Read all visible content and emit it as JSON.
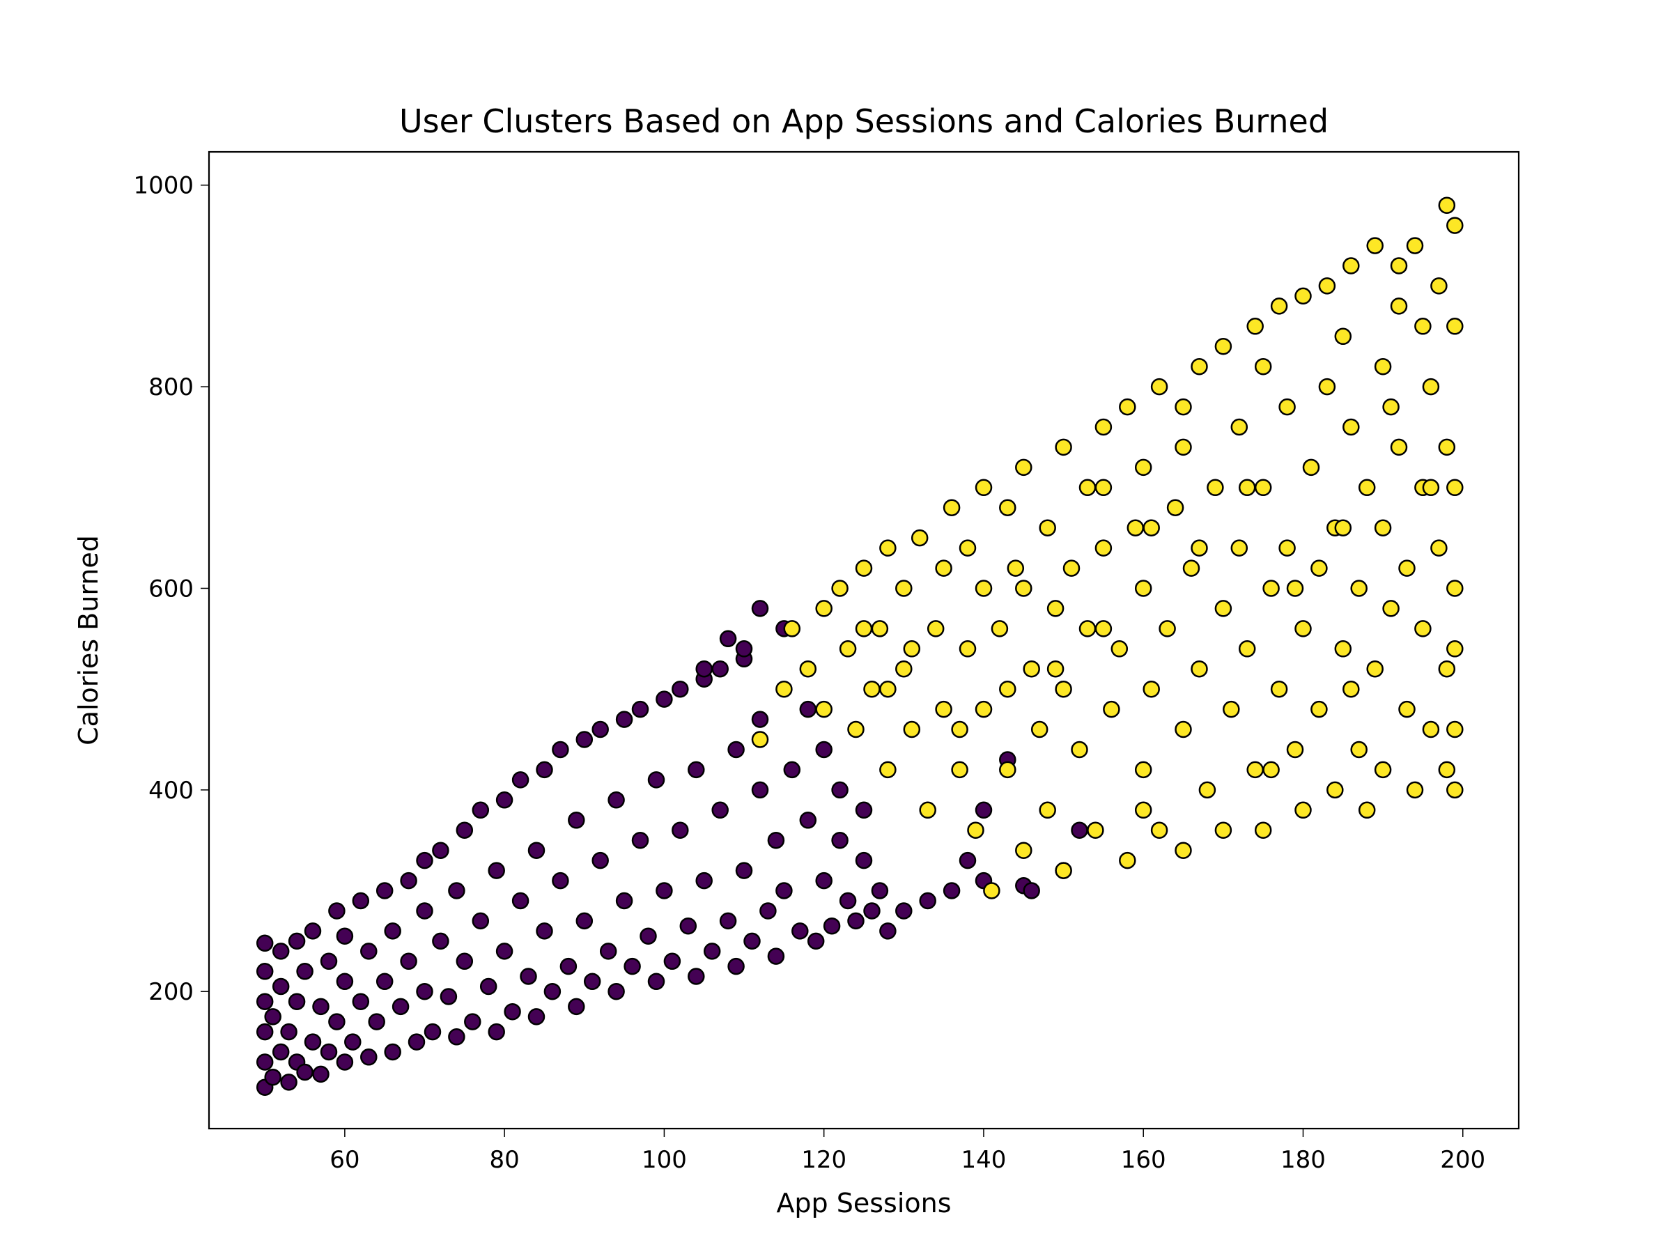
{
  "chart_data": {
    "type": "scatter",
    "title": "User Clusters Based on App Sessions and Calories Burned",
    "xlabel": "App Sessions",
    "ylabel": "Calories Burned",
    "xlim": [
      43,
      207
    ],
    "ylim": [
      64,
      1033
    ],
    "xticks": [
      60,
      80,
      100,
      120,
      140,
      160,
      180,
      200
    ],
    "yticks": [
      200,
      400,
      600,
      800,
      1000
    ],
    "grid": false,
    "legend": "none",
    "marker_edge_color": "#000000",
    "series": [
      {
        "color": "#440154",
        "points": [
          [
            50,
            105
          ],
          [
            50,
            130
          ],
          [
            50,
            160
          ],
          [
            50,
            190
          ],
          [
            50,
            220
          ],
          [
            50,
            248
          ],
          [
            51,
            115
          ],
          [
            51,
            175
          ],
          [
            52,
            140
          ],
          [
            52,
            205
          ],
          [
            52,
            240
          ],
          [
            53,
            110
          ],
          [
            53,
            160
          ],
          [
            54,
            130
          ],
          [
            54,
            190
          ],
          [
            54,
            250
          ],
          [
            55,
            120
          ],
          [
            55,
            220
          ],
          [
            56,
            150
          ],
          [
            56,
            260
          ],
          [
            57,
            118
          ],
          [
            57,
            185
          ],
          [
            58,
            140
          ],
          [
            58,
            230
          ],
          [
            59,
            170
          ],
          [
            59,
            280
          ],
          [
            60,
            130
          ],
          [
            60,
            210
          ],
          [
            60,
            255
          ],
          [
            61,
            150
          ],
          [
            62,
            190
          ],
          [
            62,
            290
          ],
          [
            63,
            135
          ],
          [
            63,
            240
          ],
          [
            64,
            170
          ],
          [
            65,
            300
          ],
          [
            65,
            210
          ],
          [
            66,
            140
          ],
          [
            66,
            260
          ],
          [
            67,
            185
          ],
          [
            68,
            310
          ],
          [
            68,
            230
          ],
          [
            69,
            150
          ],
          [
            70,
            200
          ],
          [
            70,
            280
          ],
          [
            70,
            330
          ],
          [
            71,
            160
          ],
          [
            72,
            250
          ],
          [
            72,
            340
          ],
          [
            73,
            195
          ],
          [
            74,
            155
          ],
          [
            74,
            300
          ],
          [
            75,
            230
          ],
          [
            75,
            360
          ],
          [
            76,
            170
          ],
          [
            77,
            270
          ],
          [
            77,
            380
          ],
          [
            78,
            205
          ],
          [
            79,
            320
          ],
          [
            79,
            160
          ],
          [
            80,
            240
          ],
          [
            80,
            390
          ],
          [
            81,
            180
          ],
          [
            82,
            290
          ],
          [
            82,
            410
          ],
          [
            83,
            215
          ],
          [
            84,
            340
          ],
          [
            84,
            175
          ],
          [
            85,
            260
          ],
          [
            85,
            420
          ],
          [
            86,
            200
          ],
          [
            87,
            310
          ],
          [
            87,
            440
          ],
          [
            88,
            225
          ],
          [
            89,
            370
          ],
          [
            89,
            185
          ],
          [
            90,
            270
          ],
          [
            90,
            450
          ],
          [
            91,
            210
          ],
          [
            92,
            330
          ],
          [
            92,
            460
          ],
          [
            93,
            240
          ],
          [
            94,
            390
          ],
          [
            94,
            200
          ],
          [
            95,
            290
          ],
          [
            95,
            470
          ],
          [
            96,
            225
          ],
          [
            97,
            350
          ],
          [
            97,
            480
          ],
          [
            98,
            255
          ],
          [
            99,
            410
          ],
          [
            99,
            210
          ],
          [
            100,
            300
          ],
          [
            100,
            490
          ],
          [
            101,
            230
          ],
          [
            102,
            360
          ],
          [
            102,
            500
          ],
          [
            103,
            265
          ],
          [
            104,
            420
          ],
          [
            104,
            215
          ],
          [
            105,
            310
          ],
          [
            105,
            510
          ],
          [
            106,
            240
          ],
          [
            107,
            380
          ],
          [
            107,
            520
          ],
          [
            108,
            270
          ],
          [
            109,
            440
          ],
          [
            109,
            225
          ],
          [
            110,
            320
          ],
          [
            110,
            530
          ],
          [
            111,
            250
          ],
          [
            112,
            400
          ],
          [
            112,
            470
          ],
          [
            113,
            280
          ],
          [
            114,
            350
          ],
          [
            114,
            235
          ],
          [
            115,
            300
          ],
          [
            116,
            420
          ],
          [
            117,
            260
          ],
          [
            118,
            370
          ],
          [
            119,
            250
          ],
          [
            120,
            310
          ],
          [
            121,
            265
          ],
          [
            122,
            350
          ],
          [
            123,
            290
          ],
          [
            124,
            270
          ],
          [
            125,
            330
          ],
          [
            126,
            280
          ],
          [
            127,
            300
          ],
          [
            128,
            260
          ],
          [
            130,
            280
          ],
          [
            133,
            290
          ],
          [
            136,
            300
          ],
          [
            140,
            310
          ],
          [
            145,
            305
          ],
          [
            150,
            320
          ],
          [
            118,
            480
          ],
          [
            120,
            440
          ],
          [
            122,
            400
          ],
          [
            125,
            380
          ],
          [
            110,
            540
          ],
          [
            108,
            550
          ],
          [
            105,
            520
          ],
          [
            115,
            560
          ],
          [
            112,
            580
          ],
          [
            140,
            380
          ],
          [
            143,
            430
          ],
          [
            138,
            330
          ],
          [
            146,
            300
          ],
          [
            152,
            360
          ]
        ]
      },
      {
        "color": "#fde725",
        "points": [
          [
            112,
            450
          ],
          [
            115,
            500
          ],
          [
            116,
            560
          ],
          [
            118,
            520
          ],
          [
            120,
            580
          ],
          [
            120,
            480
          ],
          [
            122,
            600
          ],
          [
            123,
            540
          ],
          [
            124,
            460
          ],
          [
            125,
            620
          ],
          [
            126,
            500
          ],
          [
            127,
            560
          ],
          [
            128,
            640
          ],
          [
            128,
            420
          ],
          [
            130,
            600
          ],
          [
            130,
            520
          ],
          [
            131,
            460
          ],
          [
            132,
            650
          ],
          [
            133,
            380
          ],
          [
            134,
            560
          ],
          [
            135,
            620
          ],
          [
            135,
            480
          ],
          [
            136,
            680
          ],
          [
            137,
            420
          ],
          [
            138,
            540
          ],
          [
            138,
            640
          ],
          [
            139,
            360
          ],
          [
            140,
            700
          ],
          [
            140,
            600
          ],
          [
            140,
            480
          ],
          [
            141,
            300
          ],
          [
            142,
            560
          ],
          [
            143,
            680
          ],
          [
            143,
            420
          ],
          [
            144,
            620
          ],
          [
            145,
            340
          ],
          [
            145,
            720
          ],
          [
            146,
            520
          ],
          [
            147,
            460
          ],
          [
            148,
            660
          ],
          [
            148,
            380
          ],
          [
            149,
            580
          ],
          [
            150,
            740
          ],
          [
            150,
            320
          ],
          [
            150,
            500
          ],
          [
            151,
            620
          ],
          [
            152,
            440
          ],
          [
            153,
            700
          ],
          [
            153,
            560
          ],
          [
            154,
            360
          ],
          [
            155,
            760
          ],
          [
            155,
            640
          ],
          [
            156,
            480
          ],
          [
            157,
            540
          ],
          [
            158,
            780
          ],
          [
            158,
            330
          ],
          [
            159,
            660
          ],
          [
            160,
            420
          ],
          [
            160,
            600
          ],
          [
            160,
            720
          ],
          [
            161,
            500
          ],
          [
            162,
            800
          ],
          [
            162,
            360
          ],
          [
            163,
            560
          ],
          [
            164,
            680
          ],
          [
            165,
            340
          ],
          [
            165,
            740
          ],
          [
            165,
            460
          ],
          [
            166,
            620
          ],
          [
            167,
            820
          ],
          [
            167,
            520
          ],
          [
            168,
            400
          ],
          [
            169,
            700
          ],
          [
            170,
            580
          ],
          [
            170,
            840
          ],
          [
            170,
            360
          ],
          [
            171,
            480
          ],
          [
            172,
            640
          ],
          [
            172,
            760
          ],
          [
            173,
            540
          ],
          [
            174,
            860
          ],
          [
            174,
            420
          ],
          [
            175,
            700
          ],
          [
            175,
            360
          ],
          [
            176,
            600
          ],
          [
            177,
            880
          ],
          [
            177,
            500
          ],
          [
            178,
            780
          ],
          [
            178,
            640
          ],
          [
            179,
            440
          ],
          [
            180,
            890
          ],
          [
            180,
            560
          ],
          [
            180,
            380
          ],
          [
            181,
            720
          ],
          [
            182,
            620
          ],
          [
            182,
            480
          ],
          [
            183,
            900
          ],
          [
            183,
            800
          ],
          [
            184,
            400
          ],
          [
            184,
            660
          ],
          [
            185,
            540
          ],
          [
            186,
            920
          ],
          [
            186,
            760
          ],
          [
            187,
            440
          ],
          [
            187,
            600
          ],
          [
            188,
            700
          ],
          [
            188,
            380
          ],
          [
            189,
            940
          ],
          [
            189,
            520
          ],
          [
            190,
            820
          ],
          [
            190,
            660
          ],
          [
            190,
            420
          ],
          [
            191,
            580
          ],
          [
            192,
            880
          ],
          [
            192,
            740
          ],
          [
            193,
            480
          ],
          [
            193,
            620
          ],
          [
            194,
            940
          ],
          [
            194,
            400
          ],
          [
            195,
            700
          ],
          [
            195,
            560
          ],
          [
            196,
            800
          ],
          [
            196,
            460
          ],
          [
            197,
            900
          ],
          [
            197,
            640
          ],
          [
            198,
            980
          ],
          [
            198,
            520
          ],
          [
            198,
            740
          ],
          [
            198,
            420
          ],
          [
            199,
            960
          ],
          [
            199,
            860
          ],
          [
            199,
            700
          ],
          [
            199,
            600
          ],
          [
            199,
            540
          ],
          [
            199,
            460
          ],
          [
            199,
            400
          ],
          [
            195,
            860
          ],
          [
            191,
            780
          ],
          [
            185,
            660
          ],
          [
            179,
            600
          ],
          [
            173,
            700
          ],
          [
            167,
            640
          ],
          [
            161,
            660
          ],
          [
            155,
            560
          ],
          [
            149,
            520
          ],
          [
            143,
            500
          ],
          [
            137,
            460
          ],
          [
            131,
            540
          ],
          [
            128,
            500
          ],
          [
            125,
            560
          ],
          [
            145,
            600
          ],
          [
            155,
            700
          ],
          [
            165,
            780
          ],
          [
            175,
            820
          ],
          [
            185,
            850
          ],
          [
            192,
            920
          ],
          [
            196,
            700
          ],
          [
            176,
            420
          ],
          [
            186,
            500
          ],
          [
            160,
            380
          ]
        ]
      }
    ]
  }
}
